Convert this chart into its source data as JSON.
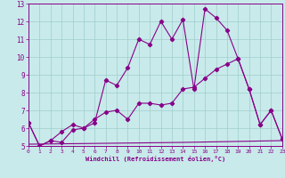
{
  "xlabel": "Windchill (Refroidissement éolien,°C)",
  "bg_color": "#c8eaea",
  "grid_color": "#a0cccc",
  "line_color": "#880088",
  "xlim": [
    0,
    23
  ],
  "ylim": [
    5,
    13
  ],
  "xticks": [
    0,
    1,
    2,
    3,
    4,
    5,
    6,
    7,
    8,
    9,
    10,
    11,
    12,
    13,
    14,
    15,
    16,
    17,
    18,
    19,
    20,
    21,
    22,
    23
  ],
  "yticks": [
    5,
    6,
    7,
    8,
    9,
    10,
    11,
    12,
    13
  ],
  "line1_x": [
    0,
    1,
    2,
    3,
    4,
    5,
    6,
    7,
    8,
    9,
    10,
    11,
    12,
    13,
    14,
    15,
    16,
    17,
    18,
    19,
    20,
    21,
    22,
    23
  ],
  "line1_y": [
    6.3,
    5.0,
    5.3,
    5.2,
    5.9,
    6.0,
    6.3,
    8.7,
    8.4,
    9.4,
    11.0,
    10.7,
    12.0,
    11.0,
    12.1,
    8.2,
    12.7,
    12.2,
    11.5,
    9.9,
    8.2,
    6.2,
    7.0,
    5.4
  ],
  "line2_x": [
    0,
    1,
    2,
    3,
    4,
    5,
    6,
    7,
    8,
    9,
    10,
    11,
    12,
    13,
    14,
    15,
    16,
    17,
    18,
    19,
    20,
    21,
    22,
    23
  ],
  "line2_y": [
    6.3,
    5.0,
    5.3,
    5.8,
    6.2,
    6.0,
    6.5,
    6.9,
    7.0,
    6.5,
    7.4,
    7.4,
    7.3,
    7.4,
    8.2,
    8.3,
    8.8,
    9.3,
    9.6,
    9.9,
    8.2,
    6.2,
    7.0,
    5.4
  ],
  "line3_x": [
    0,
    14,
    23
  ],
  "line3_y": [
    5.1,
    5.2,
    5.3
  ]
}
